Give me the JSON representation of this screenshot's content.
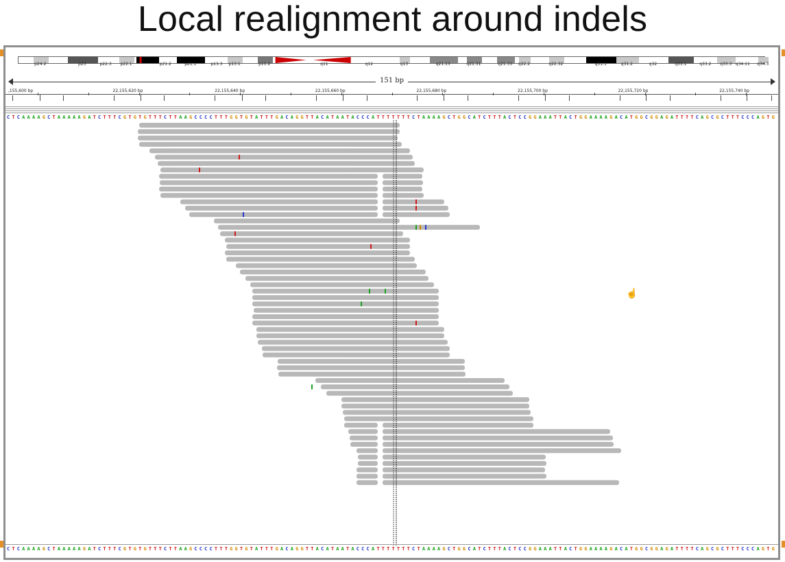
{
  "slide": {
    "title": "Local realignment around indels"
  },
  "ideogram": {
    "bands": [
      {
        "label": "p24.2",
        "pos": 0.02,
        "w": 0.02,
        "shade": "#c8c8c8"
      },
      {
        "label": "p23",
        "pos": 0.066,
        "w": 0.04,
        "shade": "#555555"
      },
      {
        "label": "p22.3",
        "pos": 0.11,
        "w": 0.015,
        "shade": "#ffffff"
      },
      {
        "label": "p22.1",
        "pos": 0.135,
        "w": 0.02,
        "shade": "#c8c8c8"
      },
      {
        "label": "",
        "pos": 0.158,
        "w": 0.03,
        "shade": "#000000"
      },
      {
        "label": "p21.2",
        "pos": 0.19,
        "w": 0.015,
        "shade": "#ffffff"
      },
      {
        "label": "p21.1",
        "pos": 0.212,
        "w": 0.038,
        "shade": "#000000"
      },
      {
        "label": "p13.3",
        "pos": 0.255,
        "w": 0.022,
        "shade": "#ffffff"
      },
      {
        "label": "p13.1",
        "pos": 0.28,
        "w": 0.02,
        "shade": "#c8c8c8"
      },
      {
        "label": "p11.2",
        "pos": 0.32,
        "w": 0.02,
        "shade": "#777777"
      },
      {
        "label": "q11",
        "pos": 0.41,
        "w": 0.0,
        "shade": "#ffffff"
      },
      {
        "label": "q12",
        "pos": 0.47,
        "w": 0.0,
        "shade": "#ffffff"
      },
      {
        "label": "q13",
        "pos": 0.51,
        "w": 0.014,
        "shade": "#c8c8c8"
      },
      {
        "label": "q21.13",
        "pos": 0.55,
        "w": 0.038,
        "shade": "#888888"
      },
      {
        "label": "q21.31",
        "pos": 0.6,
        "w": 0.02,
        "shade": "#888888"
      },
      {
        "label": "q21.33",
        "pos": 0.64,
        "w": 0.024,
        "shade": "#888888"
      },
      {
        "label": "q22.2",
        "pos": 0.67,
        "w": 0.015,
        "shade": "#c8c8c8"
      },
      {
        "label": "q22.32",
        "pos": 0.71,
        "w": 0.02,
        "shade": "#c8c8c8"
      },
      {
        "label": "q31.1",
        "pos": 0.76,
        "w": 0.04,
        "shade": "#000000"
      },
      {
        "label": "q31.2",
        "pos": 0.8,
        "w": 0.03,
        "shade": "#c8c8c8"
      },
      {
        "label": "q32",
        "pos": 0.85,
        "w": 0.0,
        "shade": "#ffffff"
      },
      {
        "label": "q33.1",
        "pos": 0.87,
        "w": 0.034,
        "shade": "#555555"
      },
      {
        "label": "q33.2",
        "pos": 0.91,
        "w": 0.02,
        "shade": "#ffffff"
      },
      {
        "label": "q33.3",
        "pos": 0.935,
        "w": 0.025,
        "shade": "#c8c8c8"
      },
      {
        "label": "q34.11",
        "pos": 0.96,
        "w": 0.02,
        "shade": "#ffffff"
      },
      {
        "label": "q34.3",
        "pos": 0.99,
        "w": 0.014,
        "shade": "#c8c8c8"
      }
    ],
    "centromere_color": "#cc0000"
  },
  "ruler": {
    "span_label": "151 bp",
    "positions": [
      {
        "label": ",155,600 bp",
        "at": 0.0
      },
      {
        "label": "22,155,620 bp",
        "at": 0.13
      },
      {
        "label": "22,155,640 bp",
        "at": 0.262
      },
      {
        "label": "22,155,660 bp",
        "at": 0.392
      },
      {
        "label": "22,155,680 bp",
        "at": 0.523
      },
      {
        "label": "22,155,700 bp",
        "at": 0.654
      },
      {
        "label": "22,155,720 bp",
        "at": 0.784
      },
      {
        "label": "22,155,740 bp",
        "at": 0.915
      }
    ]
  },
  "sequence": {
    "bases": "CTCAAAAGCTAAAAAGATCTTTCGTGTGTTTCTTAAGCCCCTTTGGTGTATTTGACAGGTTACATAATACCCATTTTTTTCTAAAAGCTGGCATCTTTACTCCGGAAATTACTGGAAAAGACATGGCGGAGATTTTCAGCGCTTTCCCAGTG",
    "colors": {
      "A": "#1aa01a",
      "C": "#2233cc",
      "G": "#d08a00",
      "T": "#d01818"
    }
  },
  "colors": {
    "read": "#b8b8b8",
    "indel_marker": "#111111",
    "frame": "#8e8e8e"
  }
}
